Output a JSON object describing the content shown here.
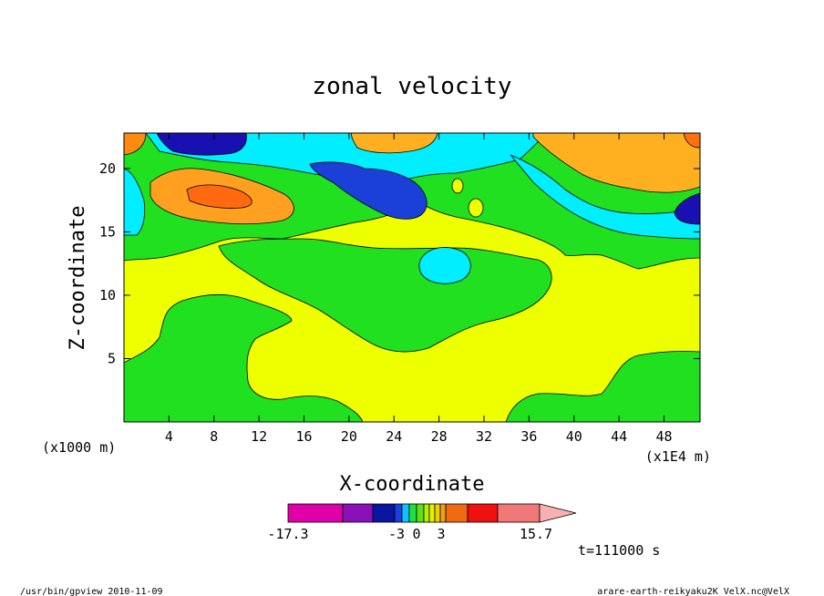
{
  "chart_data": {
    "type": "heatmap",
    "title": "zonal velocity",
    "xlabel": "X-coordinate",
    "ylabel": "Z-coordinate",
    "x_unit_label": "(x1E4 m)",
    "y_unit_label": "(x1000 m)",
    "x_ticks": [
      4,
      8,
      12,
      16,
      20,
      24,
      28,
      32,
      36,
      40,
      44,
      48
    ],
    "y_ticks": [
      5,
      10,
      15,
      20
    ],
    "xlim": [
      0,
      51.2
    ],
    "ylim": [
      0,
      22.8
    ],
    "colorbar": {
      "tick_labels": [
        "-17.3",
        "-3",
        "0",
        "3",
        "15.7"
      ],
      "colors": [
        "#e000a8",
        "#8a10b8",
        "#0a14a0",
        "#1a40e0",
        "#10c0ff",
        "#20e040",
        "#60e010",
        "#b0f000",
        "#e8f000",
        "#f0d000",
        "#f0a020",
        "#f06a10",
        "#f01010",
        "#f07878",
        "#f8b0b0"
      ]
    },
    "regions": [
      {
        "level": "yellow",
        "color": "#eeff00"
      },
      {
        "level": "green",
        "color": "#20e020"
      },
      {
        "level": "cyan",
        "color": "#00eeff"
      },
      {
        "level": "blue",
        "color": "#1810b0"
      },
      {
        "level": "light-orange",
        "color": "#ffc020"
      },
      {
        "level": "orange",
        "color": "#ff9a10"
      },
      {
        "level": "dark-orange",
        "color": "#ff6010"
      }
    ]
  },
  "annotations": {
    "time": "t=111000 s",
    "program": "/usr/bin/gpview  2010-11-09",
    "source": "arare-earth-reikyaku2K_VelX.nc@VelX"
  }
}
